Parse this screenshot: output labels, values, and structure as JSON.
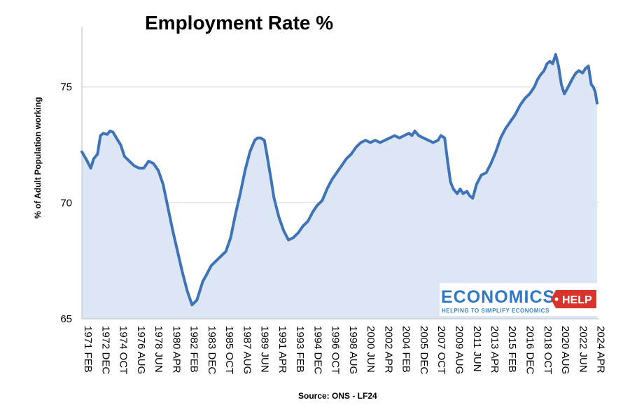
{
  "chart_data": {
    "type": "area",
    "title": "Employment Rate %",
    "ylabel": "% of Adult Population working",
    "xlabel": "Source: ONS - LF24",
    "ylim": [
      65,
      77.6
    ],
    "yticks": [
      65,
      70,
      75
    ],
    "xlim": [
      1971.08,
      2024.5
    ],
    "xtick_labels": [
      "1971 FEB",
      "1972 DEC",
      "1974 OCT",
      "1976 AUG",
      "1978 JUN",
      "1980 APR",
      "1982 FEB",
      "1983 DEC",
      "1985 OCT",
      "1987 AUG",
      "1989 JUN",
      "1991 APR",
      "1993 FEB",
      "1994 DEC",
      "1996 OCT",
      "1998 AUG",
      "2000 JUN",
      "2002 APR",
      "2004 FEB",
      "2005 DEC",
      "2007 OCT",
      "2009 AUG",
      "2011 JUN",
      "2013 APR",
      "2015 FEB",
      "2016 DEC",
      "2018 OCT",
      "2020 AUG",
      "2022 JUN",
      "2024 APR"
    ],
    "xtick_values": [
      1971.08,
      1972.92,
      1974.75,
      1976.58,
      1978.42,
      1980.25,
      1982.08,
      1983.92,
      1985.75,
      1987.58,
      1989.42,
      1991.25,
      1993.08,
      1994.92,
      1996.75,
      1998.58,
      2000.42,
      2002.25,
      2004.08,
      2005.92,
      2007.75,
      2009.58,
      2011.42,
      2013.25,
      2015.08,
      2016.92,
      2018.75,
      2020.58,
      2022.42,
      2024.25
    ],
    "series": [
      {
        "name": "Employment rate",
        "color": "#3f73b8",
        "fill": "#dde6f4",
        "x": [
          1971.08,
          1971.5,
          1972.0,
          1972.3,
          1972.7,
          1973.0,
          1973.3,
          1973.7,
          1974.0,
          1974.3,
          1974.8,
          1975.1,
          1975.5,
          1976.0,
          1976.5,
          1977.0,
          1977.5,
          1978.0,
          1978.5,
          1979.0,
          1979.5,
          1980.0,
          1980.5,
          1981.0,
          1981.5,
          1982.0,
          1982.5,
          1983.0,
          1983.3,
          1983.6,
          1984.0,
          1984.5,
          1985.0,
          1985.5,
          1986.0,
          1986.5,
          1987.0,
          1987.5,
          1988.0,
          1988.5,
          1989.0,
          1989.3,
          1989.6,
          1990.0,
          1990.3,
          1990.7,
          1991.0,
          1991.5,
          1992.0,
          1992.5,
          1993.0,
          1993.5,
          1994.0,
          1994.5,
          1995.0,
          1995.5,
          1996.0,
          1996.5,
          1997.0,
          1997.5,
          1998.0,
          1998.5,
          1999.0,
          1999.5,
          2000.0,
          2000.5,
          2001.0,
          2001.5,
          2002.0,
          2002.5,
          2003.0,
          2003.5,
          2004.0,
          2004.5,
          2005.0,
          2005.3,
          2005.6,
          2006.0,
          2006.5,
          2007.0,
          2007.5,
          2008.0,
          2008.3,
          2008.7,
          2009.0,
          2009.3,
          2009.6,
          2010.0,
          2010.3,
          2010.6,
          2011.0,
          2011.3,
          2011.6,
          2012.0,
          2012.5,
          2013.0,
          2013.5,
          2014.0,
          2014.5,
          2015.0,
          2015.5,
          2016.0,
          2016.5,
          2017.0,
          2017.5,
          2018.0,
          2018.3,
          2018.6,
          2019.0,
          2019.3,
          2019.6,
          2019.9,
          2020.2,
          2020.5,
          2020.8,
          2021.1,
          2021.5,
          2022.0,
          2022.3,
          2022.6,
          2023.0,
          2023.3,
          2023.6,
          2023.9,
          2024.1,
          2024.3,
          2024.5
        ],
        "values": [
          72.2,
          71.9,
          71.5,
          71.9,
          72.1,
          72.9,
          73.0,
          72.95,
          73.1,
          73.05,
          72.7,
          72.5,
          72.0,
          71.8,
          71.6,
          71.5,
          71.5,
          71.8,
          71.7,
          71.4,
          70.8,
          69.8,
          68.8,
          67.9,
          67.0,
          66.2,
          65.6,
          65.8,
          66.2,
          66.6,
          66.9,
          67.3,
          67.5,
          67.7,
          67.9,
          68.5,
          69.5,
          70.4,
          71.4,
          72.2,
          72.7,
          72.8,
          72.8,
          72.7,
          72.0,
          71.0,
          70.2,
          69.4,
          68.8,
          68.4,
          68.5,
          68.7,
          69.0,
          69.2,
          69.6,
          69.9,
          70.1,
          70.6,
          71.0,
          71.3,
          71.6,
          71.9,
          72.1,
          72.4,
          72.6,
          72.7,
          72.6,
          72.7,
          72.6,
          72.7,
          72.8,
          72.9,
          72.8,
          72.9,
          73.0,
          72.9,
          73.1,
          72.9,
          72.8,
          72.7,
          72.6,
          72.7,
          72.9,
          72.8,
          71.8,
          70.9,
          70.6,
          70.4,
          70.6,
          70.4,
          70.5,
          70.3,
          70.2,
          70.8,
          71.2,
          71.3,
          71.7,
          72.2,
          72.8,
          73.2,
          73.5,
          73.8,
          74.2,
          74.5,
          74.7,
          75.0,
          75.3,
          75.5,
          75.7,
          76.0,
          76.1,
          76.0,
          76.4,
          75.9,
          75.1,
          74.7,
          75.0,
          75.4,
          75.6,
          75.7,
          75.6,
          75.8,
          75.9,
          75.1,
          75.0,
          74.8,
          74.3
        ]
      }
    ],
    "source": "Source: ONS - LF24"
  },
  "logo": {
    "main": "ECONOMICS",
    "help": "HELP",
    "tagline": "HELPING TO SIMPLIFY ECONOMICS"
  }
}
